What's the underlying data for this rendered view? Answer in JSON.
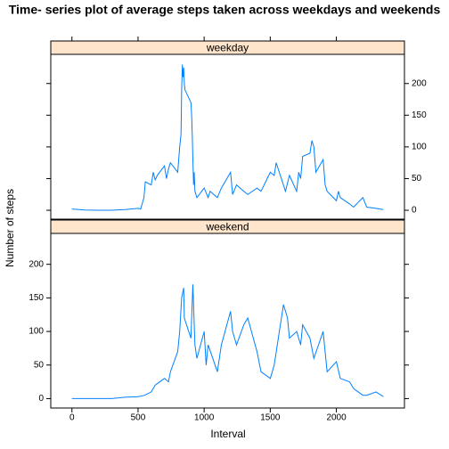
{
  "chart_data": {
    "type": "line",
    "title": "Time- series plot of average steps taken across weekdays and weekends",
    "xlabel": "Interval",
    "ylabel": "Number of steps",
    "color": "#0080ff",
    "strip_color": "#ffe5cc",
    "xlim": [
      -160,
      2515
    ],
    "xticks": [
      0,
      500,
      1000,
      1500,
      2000
    ],
    "ylim": [
      -14,
      246
    ],
    "yticks": [
      0,
      50,
      100,
      150,
      200
    ],
    "panels": [
      {
        "name": "weekday",
        "x": [
          0,
          100,
          200,
          300,
          400,
          500,
          520,
          545,
          555,
          600,
          615,
          630,
          645,
          700,
          715,
          730,
          745,
          800,
          815,
          825,
          830,
          835,
          840,
          845,
          850,
          855,
          900,
          905,
          910,
          915,
          920,
          925,
          930,
          945,
          1000,
          1030,
          1045,
          1100,
          1130,
          1200,
          1215,
          1245,
          1300,
          1330,
          1400,
          1430,
          1500,
          1530,
          1545,
          1600,
          1615,
          1645,
          1700,
          1715,
          1730,
          1745,
          1800,
          1815,
          1830,
          1845,
          1900,
          1915,
          1930,
          2000,
          2015,
          2030,
          2100,
          2130,
          2200,
          2230,
          2300,
          2355
        ],
        "values": [
          2,
          0.5,
          0,
          0,
          1,
          3,
          2,
          20,
          45,
          40,
          60,
          48,
          55,
          70,
          50,
          65,
          75,
          60,
          100,
          120,
          190,
          230,
          210,
          225,
          200,
          190,
          170,
          150,
          120,
          80,
          40,
          60,
          30,
          20,
          35,
          20,
          30,
          20,
          35,
          60,
          25,
          40,
          30,
          25,
          35,
          30,
          60,
          55,
          75,
          40,
          30,
          55,
          30,
          60,
          50,
          85,
          90,
          110,
          100,
          60,
          80,
          40,
          30,
          15,
          30,
          20,
          10,
          5,
          20,
          5,
          3,
          1
        ]
      },
      {
        "name": "weekend",
        "x": [
          0,
          100,
          200,
          300,
          400,
          500,
          550,
          600,
          630,
          700,
          730,
          745,
          800,
          815,
          830,
          845,
          850,
          900,
          915,
          930,
          945,
          1000,
          1015,
          1030,
          1100,
          1130,
          1200,
          1215,
          1245,
          1300,
          1330,
          1400,
          1430,
          1500,
          1530,
          1600,
          1630,
          1645,
          1700,
          1730,
          1745,
          1800,
          1830,
          1900,
          1930,
          2000,
          2030,
          2100,
          2130,
          2200,
          2230,
          2300,
          2355
        ],
        "values": [
          0,
          0,
          0,
          0,
          2,
          3,
          5,
          10,
          20,
          30,
          25,
          40,
          70,
          100,
          150,
          165,
          120,
          90,
          170,
          80,
          60,
          100,
          50,
          80,
          40,
          80,
          130,
          100,
          80,
          110,
          120,
          70,
          40,
          30,
          50,
          140,
          120,
          90,
          100,
          80,
          110,
          90,
          60,
          100,
          40,
          55,
          30,
          25,
          15,
          5,
          5,
          10,
          3
        ]
      }
    ]
  }
}
